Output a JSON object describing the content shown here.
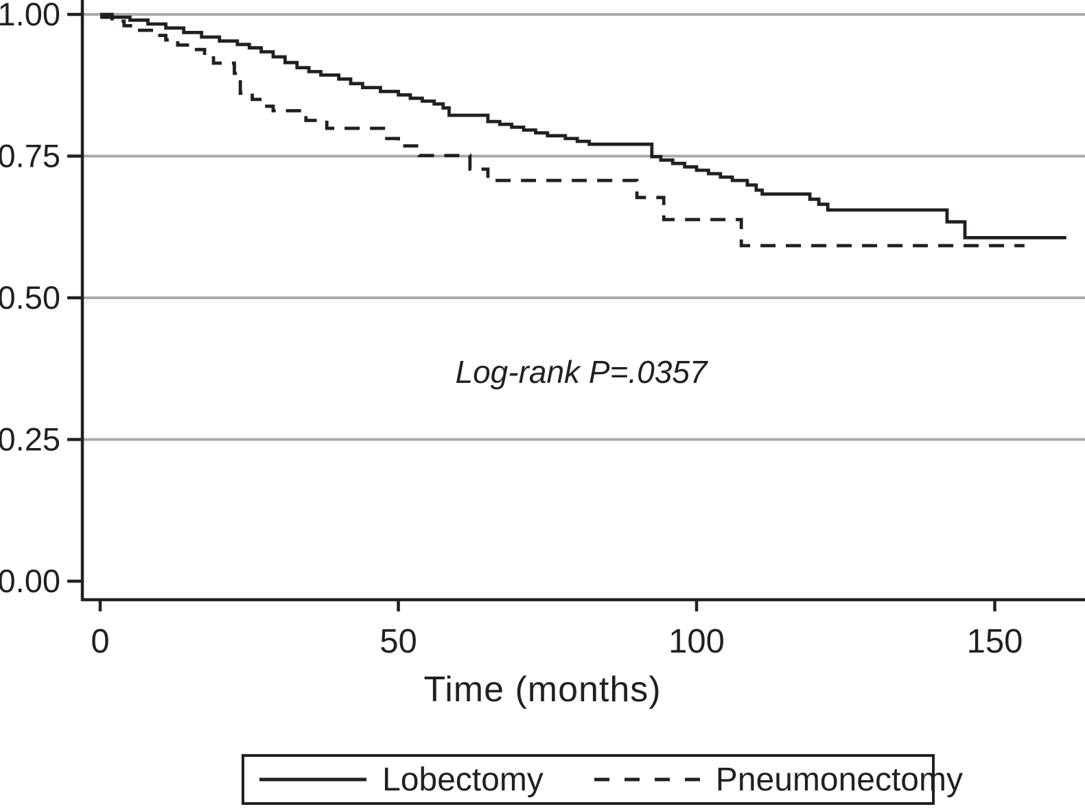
{
  "figure": {
    "xlabel": "Time (months)",
    "annotation": "Log-rank P=.0357"
  },
  "chart_data": {
    "type": "line",
    "subtype": "kaplan-meier-step-survival",
    "title": "",
    "xlabel": "Time (months)",
    "ylabel": "",
    "xlim": [
      0,
      165
    ],
    "ylim": [
      0.0,
      1.0
    ],
    "grid": "horizontal-gray-lines",
    "legend_position": "bottom-box",
    "annotation": "Log-rank P=.0357",
    "xticks": [
      {
        "value": 0,
        "label": "0"
      },
      {
        "value": 50,
        "label": "50"
      },
      {
        "value": 100,
        "label": "100"
      },
      {
        "value": 150,
        "label": "150"
      }
    ],
    "yticks": [
      {
        "value": 1.0,
        "label": "1.00",
        "grid": true
      },
      {
        "value": 0.75,
        "label": "0.75",
        "grid": true
      },
      {
        "value": 0.5,
        "label": "0.50",
        "grid": true
      },
      {
        "value": 0.25,
        "label": "0.25",
        "grid": true
      },
      {
        "value": 0.0,
        "label": "0.00",
        "grid": false
      }
    ],
    "series": [
      {
        "name": "Lobectomy",
        "line_style": "solid",
        "points": [
          [
            0,
            1.0
          ],
          [
            2,
            0.995
          ],
          [
            5,
            0.99
          ],
          [
            8,
            0.983
          ],
          [
            11,
            0.976
          ],
          [
            14,
            0.968
          ],
          [
            17,
            0.96
          ],
          [
            20,
            0.953
          ],
          [
            23,
            0.947
          ],
          [
            25,
            0.941
          ],
          [
            27,
            0.934
          ],
          [
            29,
            0.925
          ],
          [
            31,
            0.915
          ],
          [
            33,
            0.906
          ],
          [
            35,
            0.899
          ],
          [
            37,
            0.893
          ],
          [
            40,
            0.886
          ],
          [
            42,
            0.878
          ],
          [
            44,
            0.871
          ],
          [
            47,
            0.864
          ],
          [
            50,
            0.858
          ],
          [
            52,
            0.852
          ],
          [
            54,
            0.847
          ],
          [
            56,
            0.842
          ],
          [
            57.5,
            0.835
          ],
          [
            58.5,
            0.822
          ],
          [
            65,
            0.811
          ],
          [
            67,
            0.806
          ],
          [
            69,
            0.801
          ],
          [
            71,
            0.796
          ],
          [
            73,
            0.791
          ],
          [
            75,
            0.786
          ],
          [
            78,
            0.781
          ],
          [
            80,
            0.776
          ],
          [
            82,
            0.771
          ],
          [
            92.5,
            0.749
          ],
          [
            94,
            0.743
          ],
          [
            96,
            0.737
          ],
          [
            98,
            0.731
          ],
          [
            100,
            0.725
          ],
          [
            102,
            0.719
          ],
          [
            104,
            0.713
          ],
          [
            106,
            0.707
          ],
          [
            108.5,
            0.699
          ],
          [
            110,
            0.69
          ],
          [
            111,
            0.683
          ],
          [
            119,
            0.674
          ],
          [
            120.5,
            0.665
          ],
          [
            122,
            0.655
          ],
          [
            142,
            0.634
          ],
          [
            145,
            0.606
          ],
          [
            162,
            0.606
          ]
        ]
      },
      {
        "name": "Pneumonectomy",
        "line_style": "dashed",
        "points": [
          [
            0,
            0.995
          ],
          [
            2,
            0.988
          ],
          [
            4,
            0.98
          ],
          [
            6,
            0.972
          ],
          [
            9,
            0.963
          ],
          [
            11,
            0.955
          ],
          [
            13,
            0.946
          ],
          [
            15,
            0.938
          ],
          [
            17.5,
            0.928
          ],
          [
            19,
            0.914
          ],
          [
            22.5,
            0.896
          ],
          [
            23.5,
            0.861
          ],
          [
            25.5,
            0.85
          ],
          [
            27.5,
            0.838
          ],
          [
            29,
            0.83
          ],
          [
            34.5,
            0.813
          ],
          [
            38,
            0.799
          ],
          [
            47.5,
            0.781
          ],
          [
            50,
            0.768
          ],
          [
            53.5,
            0.751
          ],
          [
            62,
            0.727
          ],
          [
            65,
            0.707
          ],
          [
            90,
            0.677
          ],
          [
            94.5,
            0.638
          ],
          [
            107.5,
            0.592
          ],
          [
            155,
            0.592
          ]
        ]
      }
    ],
    "colors": {
      "line": "#231f20",
      "grid": "#a8aaad",
      "background": "#ffffff"
    }
  },
  "legend": {
    "items": [
      {
        "label": "Lobectomy",
        "style": "solid"
      },
      {
        "label": "Pneumonectomy",
        "style": "dashed"
      }
    ]
  }
}
